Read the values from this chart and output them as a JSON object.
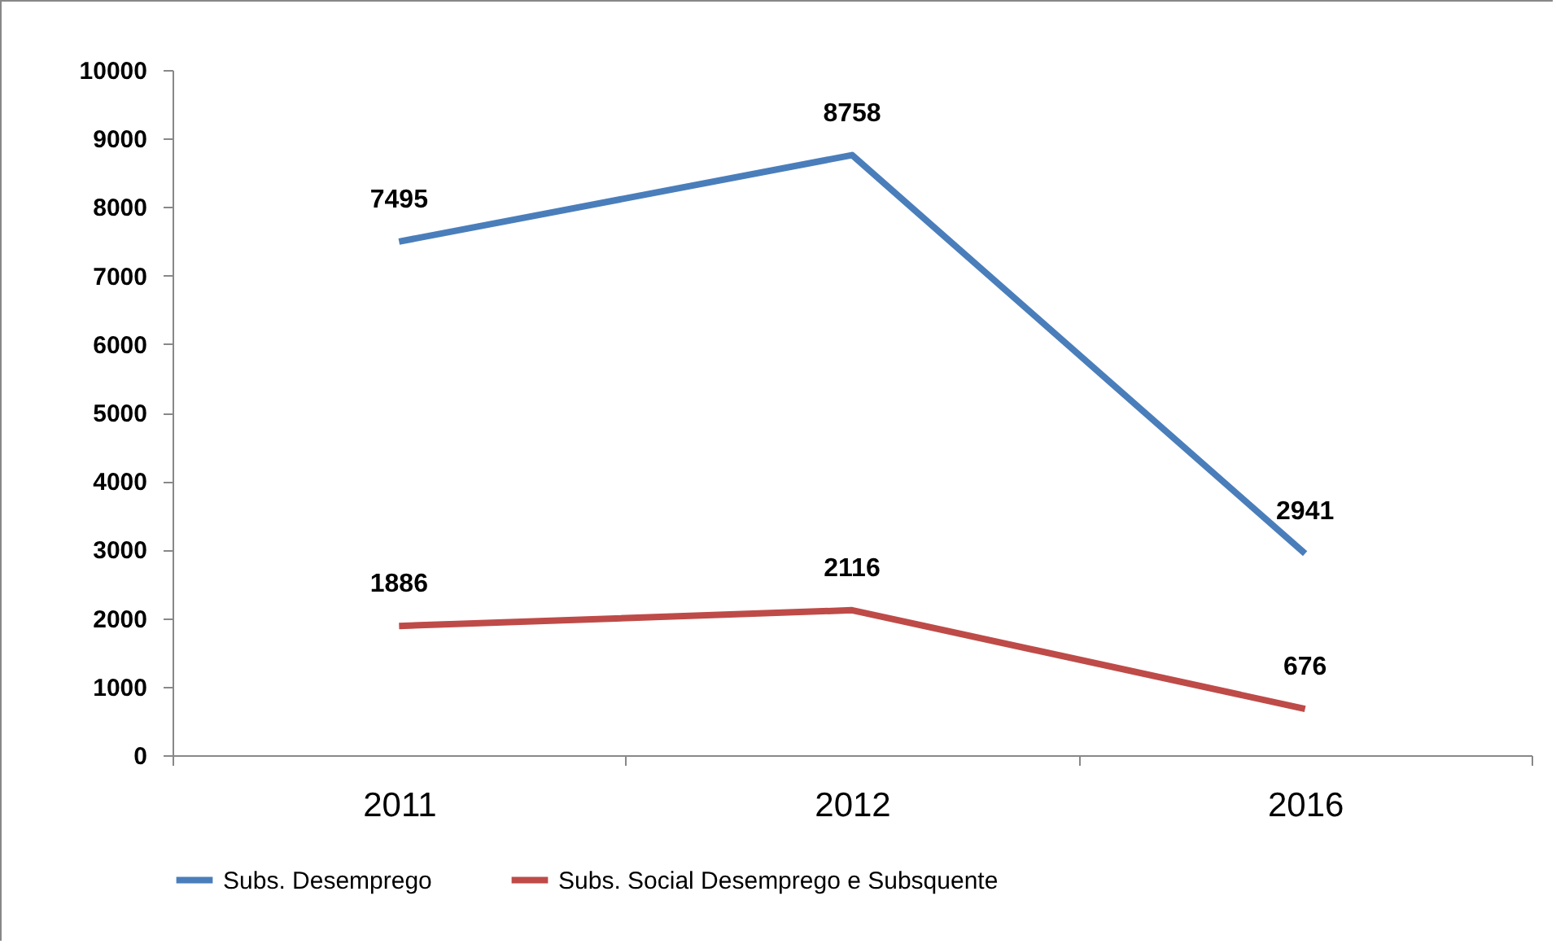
{
  "chart_data": {
    "type": "line",
    "categories": [
      "2011",
      "2012",
      "2016"
    ],
    "series": [
      {
        "name": "Subs. Desemprego",
        "color": "#4a7ebb",
        "values": [
          7495,
          8758,
          2941
        ]
      },
      {
        "name": "Subs. Social Desemprego e Subsquente",
        "color": "#be4b48",
        "values": [
          1886,
          2116,
          676
        ]
      }
    ],
    "ylim": [
      0,
      10000
    ],
    "yticks": [
      0,
      1000,
      2000,
      3000,
      4000,
      5000,
      6000,
      7000,
      8000,
      9000,
      10000
    ],
    "data_labels": true,
    "legend": "bottom"
  }
}
